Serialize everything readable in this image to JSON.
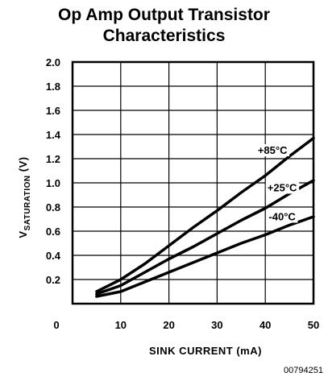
{
  "chart_data": {
    "type": "line",
    "title_line1": "Op Amp Output Transistor",
    "title_line2": "Characteristics",
    "xlabel": "SINK CURRENT (mA)",
    "ylabel_main": "V",
    "ylabel_sub": "SATURATION",
    "ylabel_unit": " (V)",
    "xlim": [
      0,
      50
    ],
    "ylim": [
      0,
      2.0
    ],
    "x_ticks": [
      "0",
      "10",
      "20",
      "30",
      "40",
      "50"
    ],
    "y_ticks": [
      "0.2",
      "0.4",
      "0.6",
      "0.8",
      "1.0",
      "1.2",
      "1.4",
      "1.6",
      "1.8",
      "2.0"
    ],
    "grid": true,
    "series": [
      {
        "name": "+85°C",
        "x": [
          5,
          10,
          15,
          20,
          25,
          30,
          35,
          40,
          45,
          50
        ],
        "y": [
          0.1,
          0.2,
          0.33,
          0.48,
          0.63,
          0.77,
          0.92,
          1.06,
          1.22,
          1.37
        ]
      },
      {
        "name": "+25°C",
        "x": [
          5,
          10,
          15,
          20,
          25,
          30,
          35,
          40,
          45,
          50
        ],
        "y": [
          0.08,
          0.15,
          0.26,
          0.37,
          0.47,
          0.58,
          0.69,
          0.79,
          0.91,
          1.02
        ]
      },
      {
        "name": "-40°C",
        "x": [
          5,
          10,
          15,
          20,
          25,
          30,
          35,
          40,
          45,
          50
        ],
        "y": [
          0.06,
          0.1,
          0.18,
          0.26,
          0.34,
          0.42,
          0.5,
          0.57,
          0.65,
          0.72
        ]
      }
    ]
  },
  "figure_code": "00794251"
}
